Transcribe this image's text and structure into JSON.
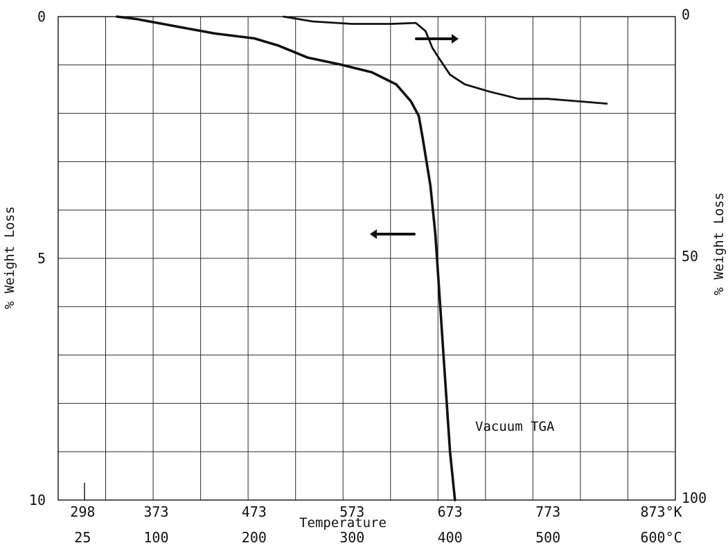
{
  "chart_data": {
    "type": "line",
    "title": "",
    "xlabel": "Temperature",
    "ylabel_left": "% Weight Loss",
    "ylabel_right": "% Weight Loss",
    "annotation": "Vacuum TGA",
    "x_unit": "°C",
    "xlim": [
      0,
      630
    ],
    "ylim_left": [
      0,
      10
    ],
    "ylim_right": [
      0,
      100
    ],
    "y_inverted": true,
    "grid": true,
    "x_ticks_kelvin": [
      {
        "value": 25,
        "label": "298"
      },
      {
        "value": 100,
        "label": "373"
      },
      {
        "value": 200,
        "label": "473"
      },
      {
        "value": 300,
        "label": "573"
      },
      {
        "value": 400,
        "label": "673"
      },
      {
        "value": 500,
        "label": "773"
      },
      {
        "value": 600,
        "label": "873°K"
      }
    ],
    "x_ticks_celsius": [
      {
        "value": 25,
        "label": "25"
      },
      {
        "value": 100,
        "label": "100"
      },
      {
        "value": 200,
        "label": "200"
      },
      {
        "value": 300,
        "label": "300"
      },
      {
        "value": 400,
        "label": "400"
      },
      {
        "value": 500,
        "label": "500"
      },
      {
        "value": 600,
        "label": "600°C"
      }
    ],
    "y_ticks_left": [
      {
        "value": 0,
        "label": "0"
      },
      {
        "value": 5,
        "label": "5"
      },
      {
        "value": 10,
        "label": "10"
      }
    ],
    "y_ticks_right": [
      {
        "value": 0,
        "label": "0"
      },
      {
        "value": 50,
        "label": "50"
      },
      {
        "value": 100,
        "label": "100"
      }
    ],
    "series": [
      {
        "axis": "left",
        "x": [
          60,
          80,
          120,
          160,
          200,
          225,
          255,
          290,
          320,
          345,
          360,
          368,
          372,
          380,
          385,
          390,
          395,
          400,
          405
        ],
        "y": [
          0.0,
          0.05,
          0.2,
          0.35,
          0.45,
          0.6,
          0.85,
          1.0,
          1.15,
          1.4,
          1.75,
          2.05,
          2.5,
          3.5,
          4.5,
          6.0,
          7.5,
          9.0,
          10.0
        ]
      },
      {
        "axis": "right",
        "x": [
          230,
          260,
          300,
          340,
          365,
          375,
          382,
          390,
          400,
          415,
          440,
          470,
          500,
          530,
          560
        ],
        "y": [
          0.0,
          1.0,
          1.5,
          1.5,
          1.3,
          3.0,
          6.5,
          9.0,
          12.0,
          14.0,
          15.5,
          17.0,
          17.0,
          17.5,
          18.0
        ]
      }
    ]
  }
}
